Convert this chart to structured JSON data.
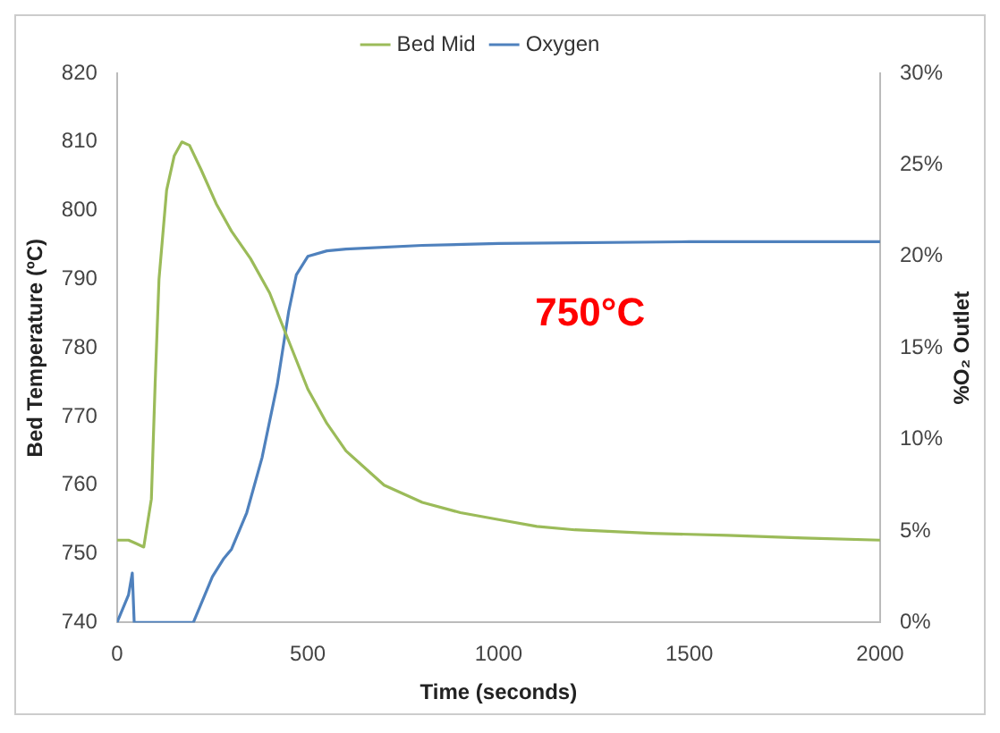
{
  "chart_data": {
    "type": "line",
    "xlabel": "Time (seconds)",
    "ylabel": "Bed Temperature (ºC)",
    "y2label": "%O₂ Outlet",
    "annotations": [
      "750°C"
    ],
    "xlim": [
      0,
      2000
    ],
    "xticks": [
      0,
      500,
      1000,
      1500,
      2000
    ],
    "ylim": [
      740,
      820
    ],
    "yticks": [
      740,
      750,
      760,
      770,
      780,
      790,
      800,
      810,
      820
    ],
    "y2lim": [
      0,
      30
    ],
    "y2ticks": [
      {
        "value": 0,
        "label": "0%"
      },
      {
        "value": 5,
        "label": "5%"
      },
      {
        "value": 10,
        "label": "10%"
      },
      {
        "value": 15,
        "label": "15%"
      },
      {
        "value": 20,
        "label": "20%"
      },
      {
        "value": 25,
        "label": "25%"
      },
      {
        "value": 30,
        "label": "30%"
      }
    ],
    "grid": false,
    "legend": "top",
    "marker": "none",
    "series": [
      {
        "name": "Bed Mid",
        "color": "#9bbb59",
        "x": [
          0,
          30,
          50,
          70,
          90,
          100,
          110,
          130,
          150,
          170,
          190,
          220,
          260,
          300,
          350,
          400,
          450,
          500,
          550,
          600,
          700,
          800,
          900,
          1000,
          1100,
          1200,
          1400,
          1600,
          1800,
          2000
        ],
        "values": [
          752,
          752,
          751.5,
          751,
          758,
          775,
          790,
          803,
          808,
          810,
          809.5,
          806,
          801,
          797,
          793,
          788,
          781,
          774,
          769,
          765,
          760,
          757.5,
          756,
          755,
          754,
          753.5,
          753,
          752.7,
          752.3,
          752
        ]
      },
      {
        "name": "Oxygen",
        "color": "#4f81bd",
        "axis": "y2",
        "x": [
          0,
          20,
          30,
          40,
          45,
          200,
          220,
          250,
          280,
          300,
          340,
          380,
          420,
          450,
          470,
          500,
          550,
          600,
          800,
          1000,
          1500,
          2000
        ],
        "values": [
          0,
          1,
          1.5,
          2.7,
          0,
          0,
          1,
          2.5,
          3.5,
          4,
          6,
          9,
          13,
          17,
          19,
          20,
          20.3,
          20.4,
          20.6,
          20.7,
          20.8,
          20.8
        ]
      }
    ]
  }
}
